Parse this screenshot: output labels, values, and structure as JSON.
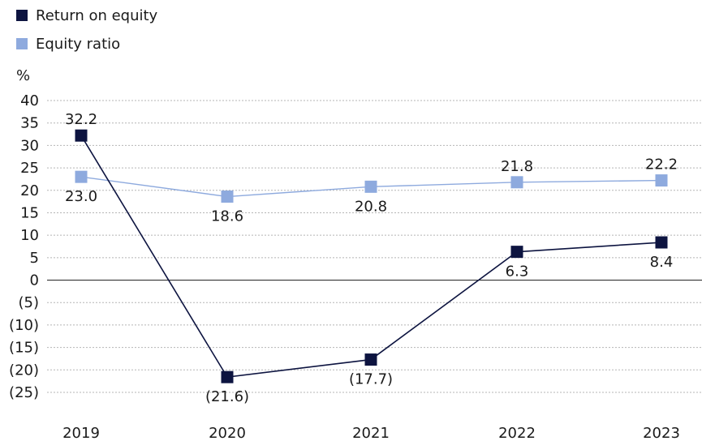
{
  "chart_data": {
    "type": "line",
    "ylabel": "%",
    "ylim": [
      -25,
      40
    ],
    "yticks": [
      40,
      35,
      30,
      25,
      20,
      15,
      10,
      5,
      0,
      -5,
      -10,
      -15,
      -20,
      -25
    ],
    "ytick_labels": [
      "40",
      "35",
      "30",
      "25",
      "20",
      "15",
      "10",
      "5",
      "0",
      "(5)",
      "(10)",
      "(15)",
      "(20)",
      "(25)"
    ],
    "categories": [
      "2019",
      "2020",
      "2021",
      "2022",
      "2023"
    ],
    "grid": "horizontal-dotted",
    "legend_position": "top-left",
    "series": [
      {
        "name": "Return on equity",
        "color": "#0d1440",
        "values": [
          32.2,
          -21.6,
          -17.7,
          6.3,
          8.4
        ],
        "labels": [
          "32.2",
          "(21.6)",
          "(17.7)",
          "6.3",
          "8.4"
        ],
        "label_pos": [
          "above",
          "below",
          "below",
          "below",
          "below"
        ]
      },
      {
        "name": "Equity ratio",
        "color": "#8eaade",
        "values": [
          23.0,
          18.6,
          20.8,
          21.8,
          22.2
        ],
        "labels": [
          "23.0",
          "18.6",
          "20.8",
          "21.8",
          "22.2"
        ],
        "label_pos": [
          "below",
          "below",
          "below",
          "above",
          "above"
        ]
      }
    ]
  }
}
